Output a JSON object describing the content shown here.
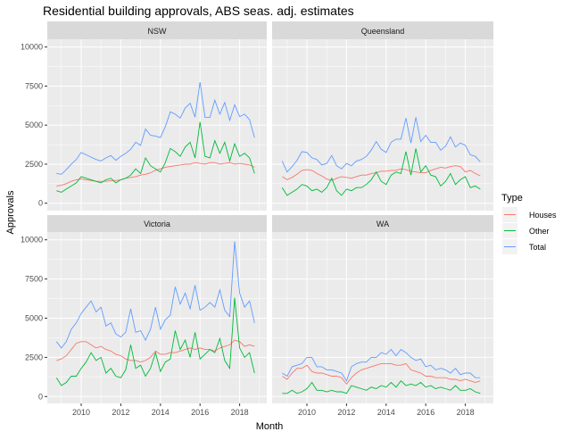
{
  "chart_data": {
    "type": "line",
    "title": "Residential building approvals, ABS seas. adj. estimates",
    "xlabel": "Month",
    "ylabel": "Approvals",
    "ylim": [
      0,
      10000
    ],
    "yticks": [
      "0",
      "2500",
      "5000",
      "7500",
      "10000"
    ],
    "xticks": [
      "2010",
      "2012",
      "2014",
      "2016",
      "2018"
    ],
    "grid": true,
    "legend": {
      "title": "Type",
      "position": "right",
      "entries": [
        "Houses",
        "Other",
        "Total"
      ]
    },
    "colors": {
      "Houses": "#F8766D",
      "Other": "#00BA38",
      "Total": "#619CFF"
    },
    "x": [
      "2008-10",
      "2009-01",
      "2009-04",
      "2009-07",
      "2009-10",
      "2010-01",
      "2010-04",
      "2010-07",
      "2010-10",
      "2011-01",
      "2011-04",
      "2011-07",
      "2011-10",
      "2012-01",
      "2012-04",
      "2012-07",
      "2012-10",
      "2013-01",
      "2013-04",
      "2013-07",
      "2013-10",
      "2014-01",
      "2014-04",
      "2014-07",
      "2014-10",
      "2015-01",
      "2015-04",
      "2015-07",
      "2015-10",
      "2016-01",
      "2016-04",
      "2016-07",
      "2016-10",
      "2017-01",
      "2017-04",
      "2017-07",
      "2017-10",
      "2018-01",
      "2018-04",
      "2018-07",
      "2018-10"
    ],
    "panels": [
      {
        "name": "NSW",
        "series": [
          {
            "name": "Houses",
            "values": [
              1100,
              1150,
              1250,
              1400,
              1500,
              1550,
              1500,
              1450,
              1400,
              1400,
              1400,
              1450,
              1450,
              1500,
              1600,
              1650,
              1700,
              1800,
              1850,
              1950,
              2100,
              2200,
              2300,
              2350,
              2400,
              2450,
              2500,
              2500,
              2600,
              2550,
              2500,
              2600,
              2600,
              2500,
              2550,
              2600,
              2500,
              2550,
              2500,
              2450,
              2300
            ]
          },
          {
            "name": "Other",
            "values": [
              800,
              700,
              900,
              1100,
              1300,
              1700,
              1600,
              1500,
              1400,
              1300,
              1500,
              1600,
              1300,
              1500,
              1600,
              1800,
              2200,
              1900,
              2900,
              2400,
              2200,
              2000,
              2600,
              3500,
              3300,
              3000,
              3600,
              3900,
              2900,
              5200,
              3000,
              2900,
              4000,
              3200,
              3900,
              2700,
              3800,
              3000,
              3200,
              2900,
              1900
            ]
          },
          {
            "name": "Total",
            "values": [
              1900,
              1850,
              2150,
              2500,
              2800,
              3250,
              3100,
              2950,
              2800,
              2700,
              2900,
              3050,
              2750,
              3000,
              3200,
              3450,
              3900,
              3700,
              4750,
              4350,
              4300,
              4200,
              4900,
              5850,
              5700,
              5450,
              6100,
              6400,
              5500,
              7750,
              5500,
              5500,
              6600,
              5700,
              6450,
              5300,
              6300,
              5550,
              5700,
              5350,
              4200
            ]
          }
        ]
      },
      {
        "name": "Queensland",
        "series": [
          {
            "name": "Houses",
            "values": [
              1700,
              1500,
              1650,
              1850,
              2100,
              2150,
              2100,
              1900,
              1750,
              1550,
              1450,
              1600,
              1700,
              1650,
              1600,
              1700,
              1800,
              1800,
              1900,
              1950,
              2050,
              2050,
              2100,
              2100,
              2200,
              2150,
              2050,
              2000,
              1950,
              1950,
              2100,
              2200,
              2300,
              2250,
              2350,
              2400,
              2350,
              2000,
              2100,
              1900,
              1750
            ]
          },
          {
            "name": "Other",
            "values": [
              1000,
              500,
              700,
              900,
              1200,
              1100,
              800,
              900,
              700,
              1000,
              1600,
              800,
              500,
              900,
              800,
              1000,
              1000,
              1200,
              1500,
              2000,
              1400,
              1200,
              1800,
              2000,
              1900,
              3300,
              1800,
              3500,
              2000,
              2400,
              1800,
              1700,
              1100,
              1400,
              1900,
              1200,
              1500,
              1700,
              1000,
              1100,
              900
            ]
          },
          {
            "name": "Total",
            "values": [
              2700,
              2000,
              2350,
              2750,
              3300,
              3250,
              2900,
              2800,
              2450,
              2550,
              3050,
              2400,
              2200,
              2550,
              2400,
              2700,
              2800,
              3000,
              3400,
              3950,
              3450,
              3250,
              3900,
              4100,
              4100,
              5450,
              3850,
              5500,
              3950,
              4350,
              3900,
              3900,
              3400,
              3650,
              4250,
              3600,
              3850,
              3700,
              3100,
              3000,
              2650
            ]
          }
        ]
      },
      {
        "name": "Victoria",
        "series": [
          {
            "name": "Houses",
            "values": [
              2300,
              2400,
              2600,
              3000,
              3400,
              3500,
              3500,
              3300,
              3100,
              3200,
              3000,
              2900,
              2700,
              2600,
              2400,
              2300,
              2300,
              2200,
              2300,
              2500,
              2900,
              2700,
              2700,
              2800,
              2800,
              2900,
              3000,
              3100,
              3000,
              3100,
              3000,
              3000,
              2900,
              3100,
              3200,
              3300,
              3600,
              3500,
              3200,
              3300,
              3200
            ]
          },
          {
            "name": "Other",
            "values": [
              1200,
              700,
              900,
              1300,
              1300,
              1800,
              2200,
              2800,
              2300,
              2500,
              1500,
              1800,
              1300,
              1200,
              1700,
              3300,
              1800,
              2000,
              1300,
              1800,
              2800,
              1600,
              2200,
              2400,
              4200,
              3000,
              3600,
              2500,
              4100,
              2400,
              2700,
              3000,
              2800,
              3700,
              2300,
              1800,
              6300,
              3100,
              2500,
              2800,
              1500
            ]
          },
          {
            "name": "Total",
            "values": [
              3500,
              3100,
              3500,
              4300,
              4700,
              5300,
              5700,
              6100,
              5400,
              5700,
              4500,
              4700,
              4000,
              3800,
              4100,
              5600,
              4100,
              4200,
              3600,
              4300,
              5700,
              4300,
              4900,
              5200,
              7000,
              5900,
              6600,
              5600,
              7100,
              5500,
              5700,
              6000,
              5700,
              6800,
              5500,
              5100,
              9900,
              6600,
              5700,
              6100,
              4700
            ]
          }
        ]
      },
      {
        "name": "WA",
        "series": [
          {
            "name": "Houses",
            "values": [
              1300,
              1100,
              1500,
              1800,
              1800,
              2000,
              1600,
              1500,
              1500,
              1400,
              1300,
              1300,
              1200,
              800,
              1200,
              1500,
              1700,
              1800,
              1900,
              2000,
              2100,
              2100,
              2100,
              2000,
              2000,
              2100,
              1700,
              1600,
              1500,
              1300,
              1300,
              1200,
              1200,
              1200,
              1100,
              1100,
              1000,
              1100,
              1000,
              900,
              1000
            ]
          },
          {
            "name": "Other",
            "values": [
              200,
              200,
              400,
              200,
              300,
              500,
              900,
              400,
              400,
              300,
              400,
              300,
              300,
              200,
              700,
              600,
              500,
              400,
              600,
              500,
              700,
              600,
              900,
              600,
              1000,
              700,
              800,
              700,
              900,
              600,
              700,
              500,
              600,
              500,
              400,
              700,
              400,
              400,
              500,
              300,
              200
            ]
          },
          {
            "name": "Total",
            "values": [
              1500,
              1300,
              1900,
              2000,
              2100,
              2500,
              2500,
              1900,
              1900,
              1700,
              1700,
              1600,
              1500,
              1000,
              1900,
              2100,
              2200,
              2200,
              2500,
              2500,
              2800,
              2700,
              3000,
              2600,
              3000,
              2800,
              2500,
              2300,
              2400,
              1900,
              2000,
              1700,
              1800,
              1700,
              1500,
              1800,
              1400,
              1500,
              1500,
              1200,
              1200
            ]
          }
        ]
      }
    ]
  }
}
